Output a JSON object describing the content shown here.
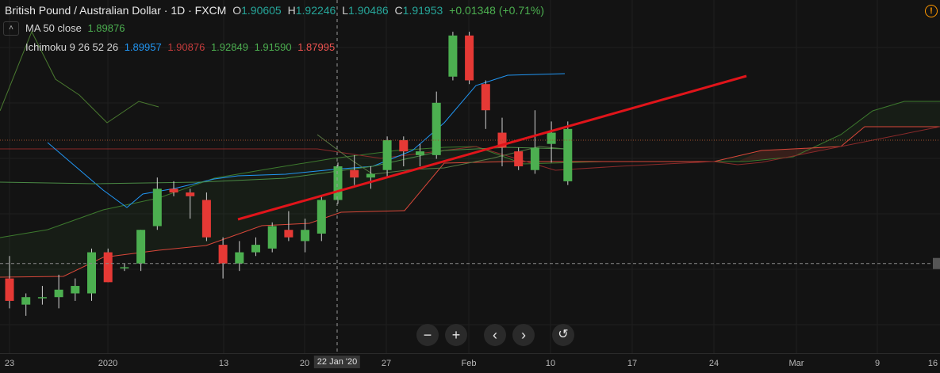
{
  "legend": {
    "symbol": "British Pound / Australian Dollar · 1D · FXCM",
    "open_label": "O",
    "open": "1.90605",
    "high_label": "H",
    "high": "1.92246",
    "low_label": "L",
    "low": "1.90486",
    "close_label": "C",
    "close": "1.91953",
    "change": "+0.01348 (+0.71%)",
    "ma_label": "MA 50 close",
    "ma_value": "1.89876",
    "ichimoku_label": "Ichimoku 9 26 52 26",
    "ichimoku_values": [
      "1.89957",
      "1.90876",
      "1.92849",
      "1.91590",
      "1.87995"
    ],
    "ichimoku_colors": [
      "#2196f3",
      "#c43b3b",
      "#4caf50",
      "#4caf50",
      "#ef5350"
    ]
  },
  "toolbar": {
    "collapse_icon": "chevron-up-icon",
    "zoom_out": "−",
    "zoom_in": "+",
    "scroll_left": "‹",
    "scroll_right": "›",
    "reset": "↺"
  },
  "x_axis": {
    "ticks": [
      "23",
      "2020",
      "13",
      "20",
      "27",
      "Feb",
      "10",
      "17",
      "24",
      "Mar",
      "9",
      "16"
    ],
    "cursor_label": "22 Jan '20"
  },
  "colors": {
    "up": "#4caf50",
    "down": "#e53935",
    "trendline": "#e0141a",
    "tenkan": "#2196f3",
    "kijun": "#8b2a2a",
    "lagging": "#4a7a30",
    "span_a": "#3d7a2e",
    "span_b": "#d9473a"
  },
  "chart_data": {
    "type": "candlestick",
    "candles": [
      {
        "o": 1.88,
        "h": 1.886,
        "l": 1.872,
        "c": 1.874
      },
      {
        "o": 1.873,
        "h": 1.876,
        "l": 1.87,
        "c": 1.875
      },
      {
        "o": 1.875,
        "h": 1.878,
        "l": 1.873,
        "c": 1.875
      },
      {
        "o": 1.875,
        "h": 1.881,
        "l": 1.872,
        "c": 1.877
      },
      {
        "o": 1.876,
        "h": 1.88,
        "l": 1.874,
        "c": 1.878
      },
      {
        "o": 1.876,
        "h": 1.888,
        "l": 1.874,
        "c": 1.887
      },
      {
        "o": 1.887,
        "h": 1.888,
        "l": 1.879,
        "c": 1.879
      },
      {
        "o": 1.883,
        "h": 1.884,
        "l": 1.882,
        "c": 1.883
      },
      {
        "o": 1.884,
        "h": 1.893,
        "l": 1.882,
        "c": 1.893
      },
      {
        "o": 1.894,
        "h": 1.907,
        "l": 1.893,
        "c": 1.904
      },
      {
        "o": 1.904,
        "h": 1.906,
        "l": 1.902,
        "c": 1.903
      },
      {
        "o": 1.903,
        "h": 1.904,
        "l": 1.896,
        "c": 1.902
      },
      {
        "o": 1.901,
        "h": 1.903,
        "l": 1.89,
        "c": 1.891
      },
      {
        "o": 1.889,
        "h": 1.891,
        "l": 1.88,
        "c": 1.884
      },
      {
        "o": 1.884,
        "h": 1.89,
        "l": 1.882,
        "c": 1.887
      },
      {
        "o": 1.887,
        "h": 1.891,
        "l": 1.886,
        "c": 1.889
      },
      {
        "o": 1.888,
        "h": 1.895,
        "l": 1.887,
        "c": 1.894
      },
      {
        "o": 1.893,
        "h": 1.898,
        "l": 1.89,
        "c": 1.891
      },
      {
        "o": 1.89,
        "h": 1.896,
        "l": 1.887,
        "c": 1.893
      },
      {
        "o": 1.892,
        "h": 1.902,
        "l": 1.89,
        "c": 1.901
      },
      {
        "o": 1.901,
        "h": 1.911,
        "l": 1.9,
        "c": 1.91
      },
      {
        "o": 1.909,
        "h": 1.913,
        "l": 1.905,
        "c": 1.907
      },
      {
        "o": 1.907,
        "h": 1.91,
        "l": 1.904,
        "c": 1.908
      },
      {
        "o": 1.909,
        "h": 1.918,
        "l": 1.907,
        "c": 1.917
      },
      {
        "o": 1.917,
        "h": 1.918,
        "l": 1.91,
        "c": 1.914
      },
      {
        "o": 1.913,
        "h": 1.916,
        "l": 1.91,
        "c": 1.914
      },
      {
        "o": 1.913,
        "h": 1.93,
        "l": 1.912,
        "c": 1.927
      },
      {
        "o": 1.934,
        "h": 1.946,
        "l": 1.933,
        "c": 1.945
      },
      {
        "o": 1.945,
        "h": 1.946,
        "l": 1.932,
        "c": 1.933
      },
      {
        "o": 1.932,
        "h": 1.933,
        "l": 1.92,
        "c": 1.925
      },
      {
        "o": 1.919,
        "h": 1.923,
        "l": 1.91,
        "c": 1.915
      },
      {
        "o": 1.914,
        "h": 1.915,
        "l": 1.909,
        "c": 1.91
      },
      {
        "o": 1.909,
        "h": 1.925,
        "l": 1.908,
        "c": 1.915
      },
      {
        "o": 1.916,
        "h": 1.922,
        "l": 1.911,
        "c": 1.919
      },
      {
        "o": 1.906,
        "h": 1.922,
        "l": 1.905,
        "c": 1.92
      }
    ],
    "price_lines": [
      1.917,
      1.884
    ],
    "cursor_date": "22 Jan '20"
  }
}
